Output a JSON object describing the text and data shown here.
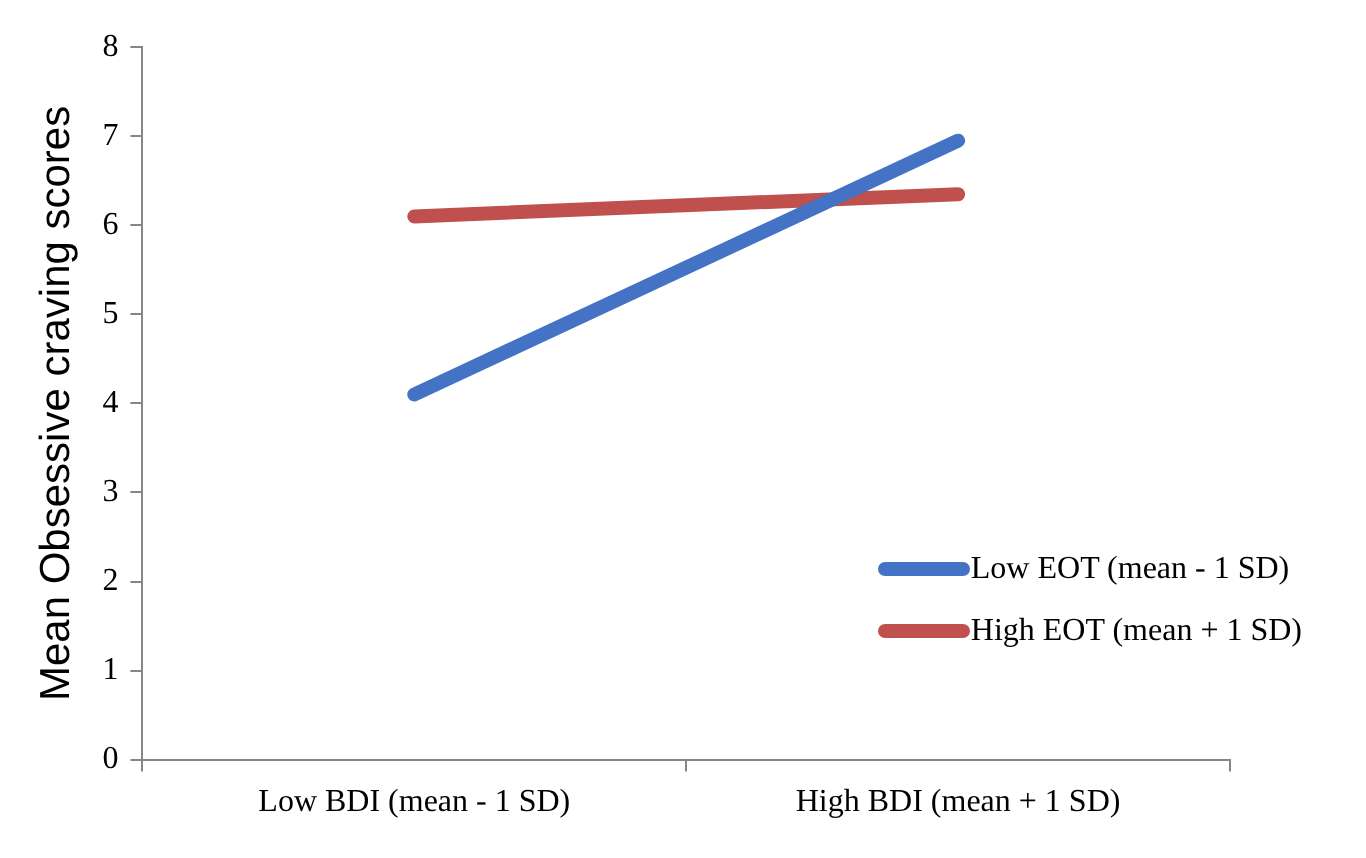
{
  "chart_data": {
    "type": "line",
    "ylabel": "Mean Obsessive craving scores",
    "categories": [
      "Low BDI (mean - 1 SD)",
      "High BDI (mean + 1 SD)"
    ],
    "series": [
      {
        "name": "Low EOT (mean - 1 SD)",
        "color": "#4472c4",
        "values": [
          4.1,
          6.95
        ]
      },
      {
        "name": "High EOT (mean + 1 SD)",
        "color": "#c0504d",
        "values": [
          6.1,
          6.35
        ]
      }
    ],
    "ylim": [
      0,
      8
    ],
    "yticks": [
      0,
      1,
      2,
      3,
      4,
      5,
      6,
      7,
      8
    ],
    "grid": false,
    "legend": "bottom right",
    "marker": "none",
    "line_style": "solid"
  }
}
